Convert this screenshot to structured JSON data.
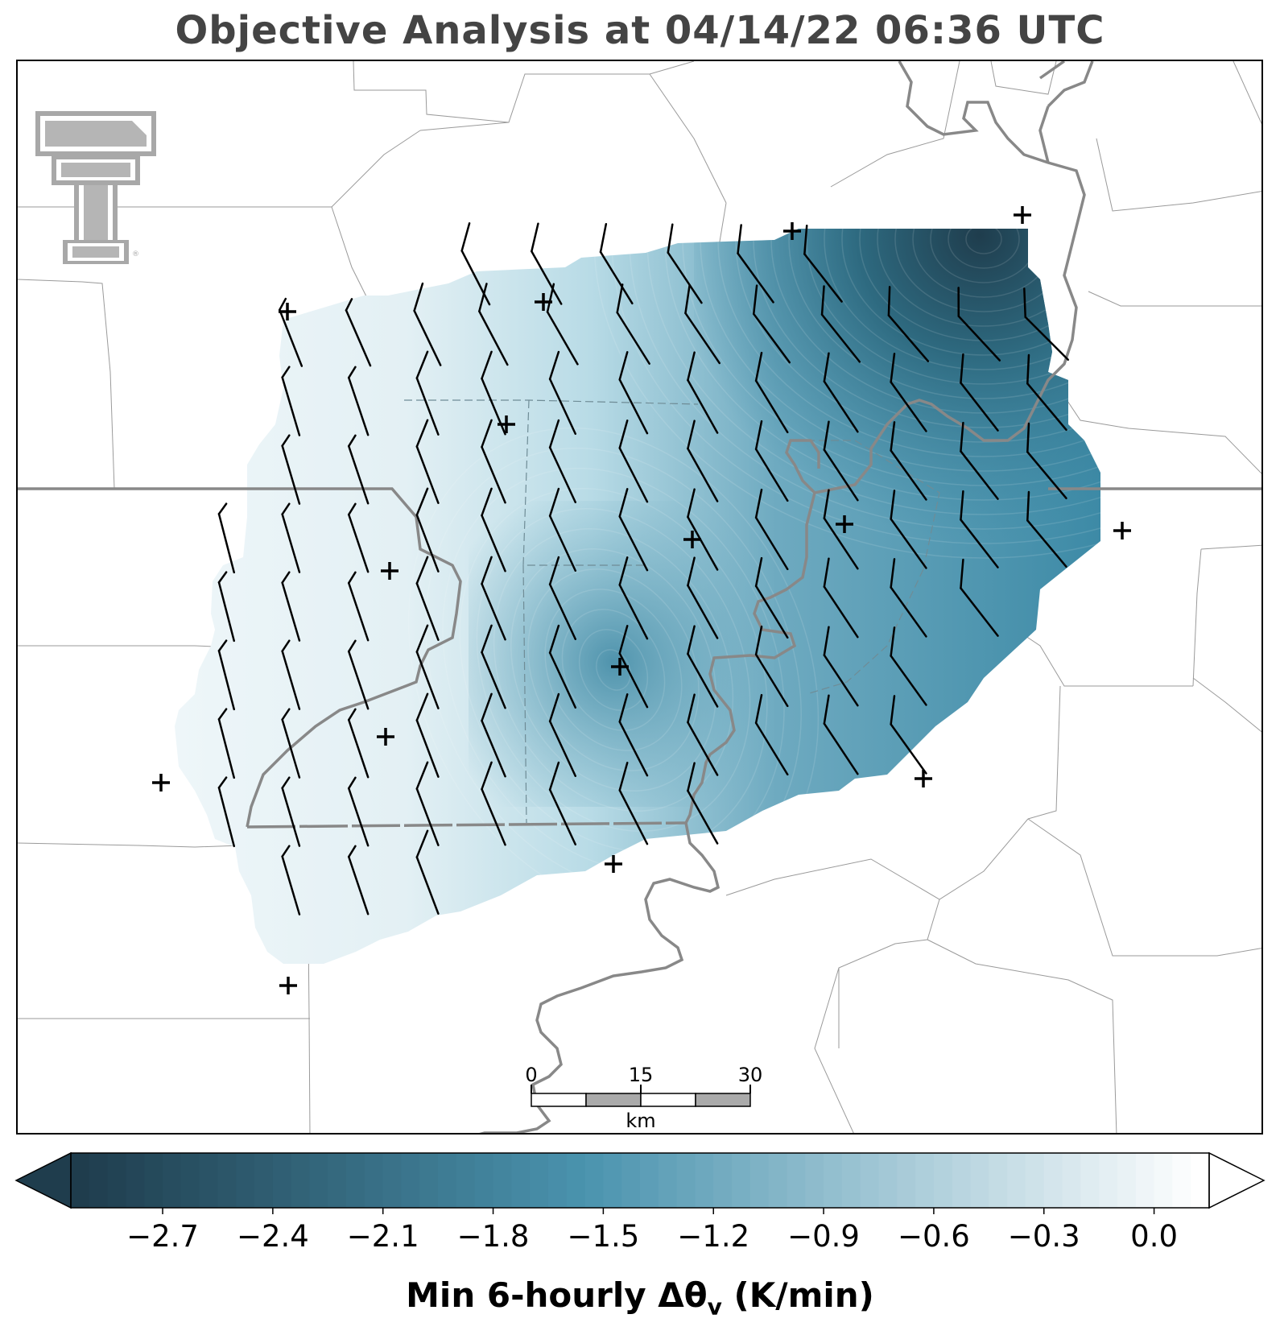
{
  "title": "Objective Analysis at 04/14/22 06:36 UTC",
  "logo": {
    "name": "texas-tech-double-t-logo",
    "color": "#a8a8a8"
  },
  "colorbar": {
    "label": "Min 6-hourly Δθ",
    "label_subscript": "v",
    "label_units": " (K/min)",
    "ticks": [
      "−2.7",
      "−2.4",
      "−2.1",
      "−1.8",
      "−1.5",
      "−1.2",
      "−0.9",
      "−0.6",
      "−0.3",
      "0.0"
    ],
    "tick_values": [
      -2.7,
      -2.4,
      -2.1,
      -1.8,
      -1.5,
      -1.2,
      -0.9,
      -0.6,
      -0.3,
      0.0
    ],
    "range": [
      -2.95,
      0.15
    ],
    "extend": "both",
    "colors": {
      "min": "#1f3d4d",
      "mid": "#4a93ae",
      "max": "#ffffff"
    }
  },
  "scale_bar": {
    "labels": [
      "0",
      "15",
      "30"
    ],
    "unit": "km"
  },
  "field": {
    "variable": "Min 6-hourly Δθv",
    "minimum_center": "northeast corner",
    "secondary_minimum": "center of domain"
  },
  "stations_count": 15,
  "wind_barbs": "every grid point, mostly from north-northwest"
}
